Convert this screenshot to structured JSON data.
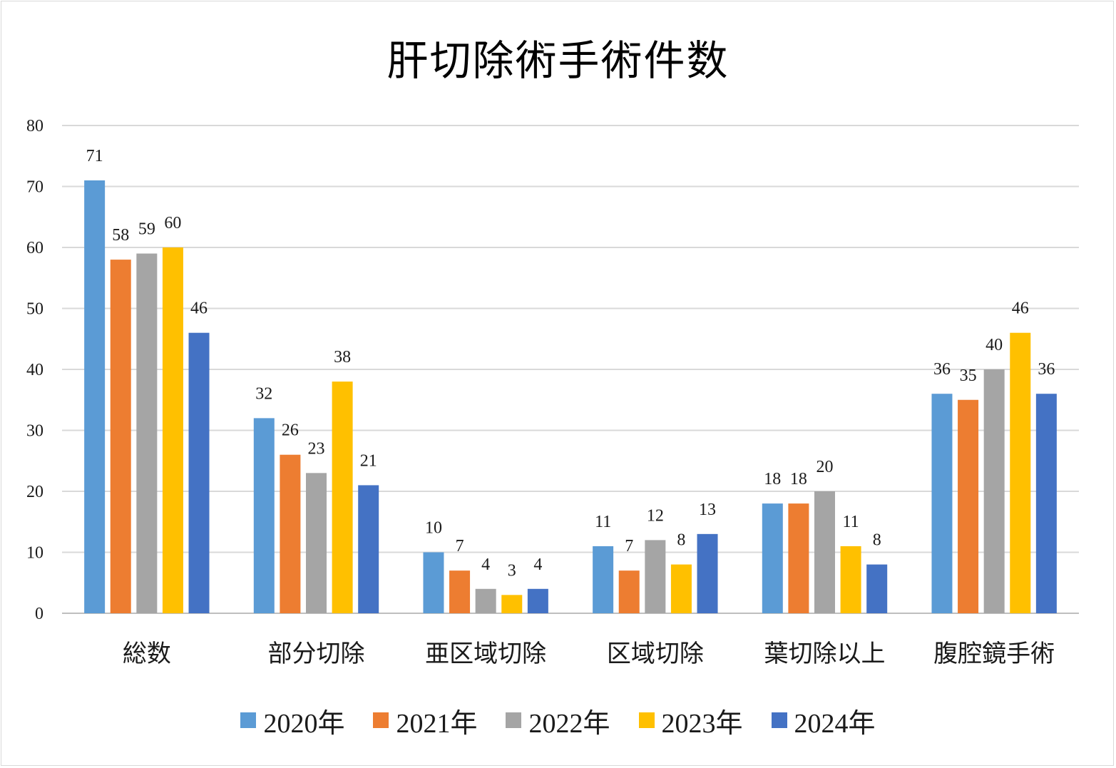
{
  "chart_data": {
    "type": "bar",
    "title": "肝切除術手術件数",
    "xlabel": "",
    "ylabel": "",
    "ylim": [
      0,
      80
    ],
    "yticks": [
      0,
      10,
      20,
      30,
      40,
      50,
      60,
      70,
      80
    ],
    "grid": true,
    "legend_position": "bottom",
    "categories": [
      "総数",
      "部分切除",
      "亜区域切除",
      "区域切除",
      "葉切除以上",
      "腹腔鏡手術"
    ],
    "series": [
      {
        "name": "2020年",
        "color": "#5b9bd5",
        "values": [
          71,
          32,
          10,
          11,
          18,
          36
        ]
      },
      {
        "name": "2021年",
        "color": "#ed7d31",
        "values": [
          58,
          26,
          7,
          7,
          18,
          35
        ]
      },
      {
        "name": "2022年",
        "color": "#a5a5a5",
        "values": [
          59,
          23,
          4,
          12,
          20,
          40
        ]
      },
      {
        "name": "2023年",
        "color": "#ffc000",
        "values": [
          60,
          38,
          3,
          8,
          11,
          46
        ]
      },
      {
        "name": "2024年",
        "color": "#4472c4",
        "values": [
          46,
          21,
          4,
          13,
          8,
          36
        ]
      }
    ]
  }
}
